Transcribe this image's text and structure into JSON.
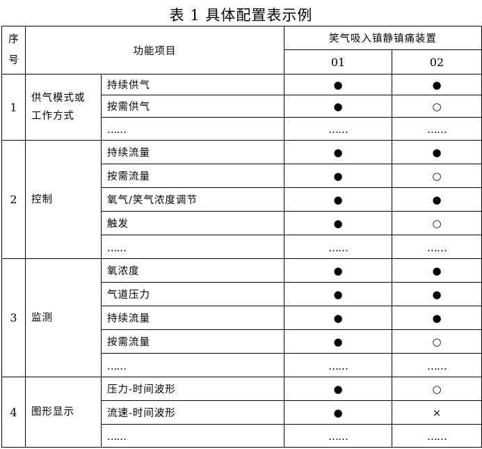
{
  "title": "表 1 具体配置表示例",
  "header": {
    "seq": "序号",
    "function": "功能项目",
    "device": "笑气吸入镇静镇痛装置",
    "models": [
      "01",
      "02"
    ]
  },
  "legend_symbols": {
    "filled": "●",
    "empty": "○",
    "none": "×",
    "etc": "……"
  },
  "groups": [
    {
      "no": "1",
      "name": "供气模式或工作方式",
      "items": [
        {
          "label": "持续供气",
          "m01": "●",
          "m02": "●"
        },
        {
          "label": "按需供气",
          "m01": "●",
          "m02": "○"
        },
        {
          "label": "……",
          "m01": "……",
          "m02": "……"
        }
      ]
    },
    {
      "no": "2",
      "name": "控制",
      "items": [
        {
          "label": "持续流量",
          "m01": "●",
          "m02": "●"
        },
        {
          "label": "按需流量",
          "m01": "●",
          "m02": "○"
        },
        {
          "label": "氧气/笑气浓度调节",
          "m01": "●",
          "m02": "●"
        },
        {
          "label": "触发",
          "m01": "●",
          "m02": "○"
        },
        {
          "label": "……",
          "m01": "……",
          "m02": "……"
        }
      ]
    },
    {
      "no": "3",
      "name": "监测",
      "items": [
        {
          "label": "氧浓度",
          "m01": "●",
          "m02": "●"
        },
        {
          "label": "气道压力",
          "m01": "●",
          "m02": "●"
        },
        {
          "label": "持续流量",
          "m01": "●",
          "m02": "●"
        },
        {
          "label": "按需流量",
          "m01": "●",
          "m02": "○"
        },
        {
          "label": "……",
          "m01": "……",
          "m02": "……"
        }
      ]
    },
    {
      "no": "4",
      "name": "图形显示",
      "items": [
        {
          "label": "压力-时间波形",
          "m01": "●",
          "m02": "○"
        },
        {
          "label": "流速-时间波形",
          "m01": "●",
          "m02": "×"
        },
        {
          "label": "……",
          "m01": "……",
          "m02": "……"
        }
      ]
    }
  ]
}
